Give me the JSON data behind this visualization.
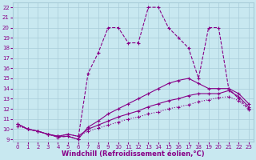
{
  "xlabel": "Windchill (Refroidissement éolien,°C)",
  "background_color": "#c8e8f0",
  "line_color": "#880088",
  "grid_color": "#a8ccd8",
  "xlim_min": -0.5,
  "xlim_max": 23.5,
  "ylim_min": 8.8,
  "ylim_max": 22.5,
  "xticks": [
    0,
    1,
    2,
    3,
    4,
    5,
    6,
    7,
    8,
    9,
    10,
    11,
    12,
    13,
    14,
    15,
    16,
    17,
    18,
    19,
    20,
    21,
    22,
    23
  ],
  "yticks": [
    9,
    10,
    11,
    12,
    13,
    14,
    15,
    16,
    17,
    18,
    19,
    20,
    21,
    22
  ],
  "line_main_x": [
    0,
    1,
    2,
    3,
    4,
    5,
    6,
    7,
    8,
    9,
    10,
    11,
    12,
    13,
    14,
    15,
    16,
    17,
    18,
    19,
    20,
    21,
    22,
    23
  ],
  "line_main_y": [
    10.5,
    10.0,
    9.8,
    9.5,
    9.2,
    9.3,
    9.0,
    15.5,
    17.5,
    20.0,
    20.0,
    18.5,
    18.5,
    22.0,
    22.0,
    20.0,
    19.0,
    18.0,
    15.0,
    20.0,
    20.0,
    14.0,
    13.0,
    12.0
  ],
  "line_a_x": [
    0,
    1,
    2,
    3,
    4,
    5,
    6,
    7,
    8,
    9,
    10,
    11,
    12,
    13,
    14,
    15,
    16,
    17,
    18,
    19,
    20,
    21,
    22,
    23
  ],
  "line_a_y": [
    10.5,
    10.0,
    9.8,
    9.5,
    9.3,
    9.3,
    9.0,
    10.2,
    10.8,
    11.5,
    12.0,
    12.5,
    13.0,
    13.5,
    14.0,
    14.5,
    14.8,
    15.0,
    14.5,
    14.0,
    14.0,
    14.0,
    13.5,
    12.5
  ],
  "line_b_x": [
    0,
    1,
    2,
    3,
    4,
    5,
    6,
    7,
    8,
    9,
    10,
    11,
    12,
    13,
    14,
    15,
    16,
    17,
    18,
    19,
    20,
    21,
    22,
    23
  ],
  "line_b_y": [
    10.5,
    10.0,
    9.8,
    9.5,
    9.3,
    9.5,
    9.3,
    10.0,
    10.4,
    10.8,
    11.2,
    11.5,
    11.8,
    12.2,
    12.5,
    12.8,
    13.0,
    13.3,
    13.5,
    13.5,
    13.5,
    13.8,
    13.2,
    12.2
  ],
  "line_c_x": [
    0,
    1,
    2,
    3,
    4,
    5,
    6,
    7,
    8,
    9,
    10,
    11,
    12,
    13,
    14,
    15,
    16,
    17,
    18,
    19,
    20,
    21,
    22,
    23
  ],
  "line_c_y": [
    10.3,
    10.0,
    9.8,
    9.5,
    9.3,
    9.5,
    9.3,
    9.8,
    10.1,
    10.4,
    10.7,
    11.0,
    11.2,
    11.5,
    11.7,
    12.0,
    12.2,
    12.4,
    12.7,
    12.9,
    13.1,
    13.2,
    12.8,
    11.9
  ],
  "markersize": 2.5,
  "linewidth": 0.8,
  "tick_fontsize": 5,
  "label_fontsize": 6
}
